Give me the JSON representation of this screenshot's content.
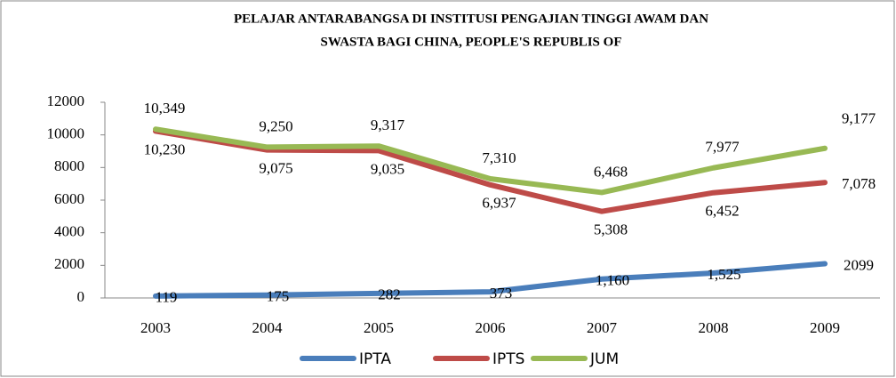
{
  "chart_data": {
    "type": "line",
    "title": [
      "PELAJAR ANTARABANGSA DI INSTITUSI PENGAJIAN TINGGI AWAM DAN",
      "SWASTA BAGI CHINA, PEOPLE'S REPUBLIS OF"
    ],
    "categories": [
      "2003",
      "2004",
      "2005",
      "2006",
      "2007",
      "2008",
      "2009"
    ],
    "series": [
      {
        "name": "IPTA",
        "color": "#4a7ebb",
        "values": [
          119,
          175,
          282,
          373,
          1160,
          1525,
          2099
        ],
        "value_labels": [
          "119",
          "175",
          "282",
          "373",
          "1,160",
          "1,525",
          "2099"
        ]
      },
      {
        "name": "IPTS",
        "color": "#be4b48",
        "values": [
          10230,
          9075,
          9035,
          6937,
          5308,
          6452,
          7078
        ],
        "value_labels": [
          "10,230",
          "9,075",
          "9,035",
          "6,937",
          "5,308",
          "6,452",
          "7,078"
        ]
      },
      {
        "name": "JUM",
        "color": "#98b954",
        "values": [
          10349,
          9250,
          9317,
          7310,
          6468,
          7977,
          9177
        ],
        "value_labels": [
          "10,349",
          "9,250",
          "9,317",
          "7,310",
          "6,468",
          "7,977",
          "9,177"
        ]
      }
    ],
    "ylim": [
      0,
      12000
    ],
    "yticks": [
      0,
      2000,
      4000,
      6000,
      8000,
      10000,
      12000
    ],
    "legend": "bottom"
  }
}
